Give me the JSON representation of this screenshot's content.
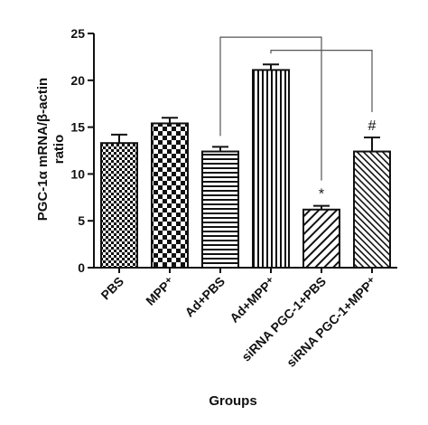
{
  "chart_data": {
    "type": "bar",
    "categories": [
      "PBS",
      "MPP⁺",
      "Ad+PBS",
      "Ad+MPP⁺",
      "siRNA PGC-1+PBS",
      "siRNA PGC-1+MPP⁺"
    ],
    "values": [
      13.3,
      15.4,
      12.4,
      21.1,
      6.2,
      12.4
    ],
    "errors": [
      0.9,
      0.6,
      0.5,
      0.6,
      0.4,
      1.5
    ],
    "patterns": [
      "checker-small",
      "checker-large",
      "horizontal-lines",
      "vertical-lines",
      "diagonal-sparse",
      "diagonal-dense"
    ],
    "annotations": [
      "",
      "",
      "",
      "",
      "*",
      "#"
    ],
    "comparisons": [
      {
        "from": 2,
        "to": 4,
        "level": 24.6
      },
      {
        "from": 3,
        "to": 5,
        "level": 23.2
      }
    ],
    "xlabel": "Groups",
    "ylabel_line1": "PGC-1α mRNA/β-actin",
    "ylabel_line2": "ratio",
    "ylim": [
      0,
      25
    ],
    "yticks": [
      0,
      5,
      10,
      15,
      20,
      25
    ],
    "grid": false
  },
  "colors": {
    "ink": "#111111",
    "background": "#ffffff"
  }
}
